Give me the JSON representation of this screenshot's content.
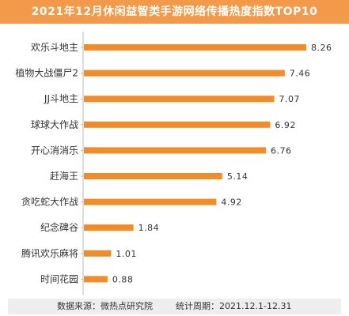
{
  "colors": {
    "accent": "#f28c28",
    "title_bg": "#f39a4a",
    "footer_bg": "#eeeeee"
  },
  "footer": {
    "source": "数据来源：微热点研究院",
    "period": "统计周期：2021.12.1-12.31"
  },
  "chart_data": {
    "type": "bar",
    "orientation": "horizontal",
    "title": "2021年12月休闲益智类手游网络传播热度指数TOP10",
    "categories": [
      "欢乐斗地主",
      "植物大战僵尸2",
      "JJ斗地主",
      "球球大作战",
      "开心消消乐",
      "赶海王",
      "贪吃蛇大作战",
      "纪念碑谷",
      "腾讯欢乐麻将",
      "时间花园"
    ],
    "values": [
      8.26,
      7.46,
      7.07,
      6.92,
      6.76,
      5.14,
      4.92,
      1.84,
      1.01,
      0.88
    ],
    "value_labels": [
      "8.26",
      "7.46",
      "7.07",
      "6.92",
      "6.76",
      "5.14",
      "4.92",
      "1.84",
      "1.01",
      "0.88"
    ],
    "xlim": [
      0,
      8.26
    ],
    "grid": false,
    "legend": "none"
  }
}
